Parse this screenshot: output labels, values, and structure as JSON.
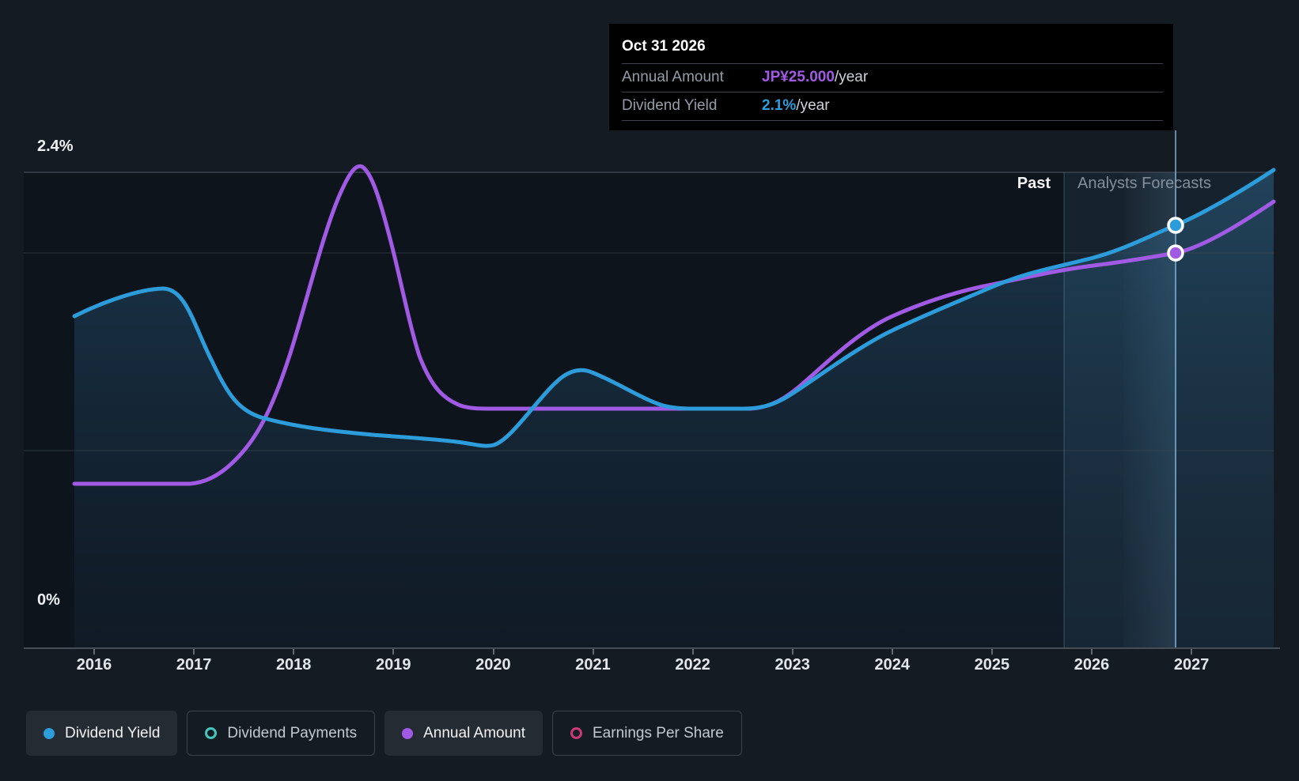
{
  "tooltip": {
    "date": "Oct 31 2026",
    "rows": [
      {
        "label": "Annual Amount",
        "value": "JP¥25.000",
        "suffix": "/year",
        "color": "#a15ae4"
      },
      {
        "label": "Dividend Yield",
        "value": "2.1%",
        "suffix": "/year",
        "color": "#2d9cdb"
      }
    ]
  },
  "axes": {
    "y_top_label": "2.4%",
    "y_bottom_label": "0%",
    "years": [
      "2016",
      "2017",
      "2018",
      "2019",
      "2020",
      "2021",
      "2022",
      "2023",
      "2024",
      "2025",
      "2026",
      "2027"
    ]
  },
  "regions": {
    "past_label": "Past",
    "forecast_label": "Analysts Forecasts"
  },
  "legend": {
    "items": [
      {
        "label": "Dividend Yield",
        "active": true,
        "marker": "filled",
        "color": "#2d9cdb"
      },
      {
        "label": "Dividend Payments",
        "active": false,
        "marker": "ring",
        "color": "#45c8bc"
      },
      {
        "label": "Annual Amount",
        "active": true,
        "marker": "filled",
        "color": "#a15ae4"
      },
      {
        "label": "Earnings Per Share",
        "active": false,
        "marker": "ring",
        "color": "#cc3a78"
      }
    ]
  },
  "chart_data": {
    "type": "line",
    "title": "Dividend yield history and analysts forecast",
    "x_axis": {
      "tick_labels": [
        "2016",
        "2017",
        "2018",
        "2019",
        "2020",
        "2021",
        "2022",
        "2023",
        "2024",
        "2025",
        "2026",
        "2027"
      ],
      "range_years": [
        2015.8,
        2027.8
      ]
    },
    "y_axis": {
      "labelled_ticks": [
        "2.4%",
        "0%"
      ],
      "range_percent": [
        0,
        2.4
      ],
      "gridlines_percent": [
        0,
        1.0,
        2.0,
        2.4
      ],
      "grid": true
    },
    "past_forecast_divider_year": 2025.3,
    "region_labels": {
      "past": "Past",
      "forecast": "Analysts Forecasts"
    },
    "highlighted_point": {
      "date": "Oct 31 2026",
      "x_year": 2026.83,
      "dividend_yield_percent": 2.1,
      "annual_amount_jpy_per_year": 25.0
    },
    "legend_position": "bottom-left",
    "series": [
      {
        "name": "Dividend Yield",
        "unit": "%",
        "color": "#2d9cdb",
        "style": "line+area",
        "status": "active",
        "points_year_value": [
          [
            2015.8,
            1.68
          ],
          [
            2016.0,
            1.73
          ],
          [
            2016.4,
            1.81
          ],
          [
            2016.8,
            1.82
          ],
          [
            2017.2,
            1.44
          ],
          [
            2017.6,
            1.18
          ],
          [
            2018.0,
            1.13
          ],
          [
            2018.5,
            1.1
          ],
          [
            2019.0,
            1.08
          ],
          [
            2019.9,
            1.02
          ],
          [
            2020.3,
            1.21
          ],
          [
            2020.8,
            1.41
          ],
          [
            2021.3,
            1.29
          ],
          [
            2021.8,
            1.21
          ],
          [
            2022.5,
            1.21
          ],
          [
            2023.0,
            1.3
          ],
          [
            2023.5,
            1.47
          ],
          [
            2024.0,
            1.61
          ],
          [
            2024.5,
            1.72
          ],
          [
            2025.0,
            1.83
          ],
          [
            2025.5,
            1.9
          ],
          [
            2026.0,
            1.97
          ],
          [
            2026.83,
            2.1
          ],
          [
            2027.4,
            2.29
          ],
          [
            2027.8,
            2.42
          ]
        ]
      },
      {
        "name": "Annual Amount",
        "unit": "JP¥/year",
        "color": "#a15ae4",
        "style": "line",
        "status": "active",
        "points_year_value": [
          [
            2015.8,
            10.4
          ],
          [
            2017.0,
            10.4
          ],
          [
            2017.4,
            11.8
          ],
          [
            2017.75,
            14.9
          ],
          [
            2018.0,
            19.5
          ],
          [
            2018.3,
            25.5
          ],
          [
            2018.64,
            30.6
          ],
          [
            2019.0,
            25.0
          ],
          [
            2019.2,
            20.0
          ],
          [
            2019.5,
            16.3
          ],
          [
            2019.9,
            15.2
          ],
          [
            2022.6,
            15.2
          ],
          [
            2023.0,
            16.6
          ],
          [
            2023.5,
            18.9
          ],
          [
            2024.0,
            21.0
          ],
          [
            2024.5,
            22.1
          ],
          [
            2025.0,
            23.0
          ],
          [
            2025.5,
            23.7
          ],
          [
            2026.0,
            24.2
          ],
          [
            2026.83,
            25.0
          ],
          [
            2027.4,
            26.5
          ],
          [
            2027.8,
            28.3
          ]
        ]
      }
    ],
    "inactive_series": [
      "Dividend Payments",
      "Earnings Per Share"
    ]
  },
  "layout_colors": {
    "page_bg": "#151b23",
    "past_region_bg": "#0e141c",
    "forecast_region_bg": "#16222d",
    "gridline": "#404954",
    "marker_line": "#7fb3d8"
  }
}
